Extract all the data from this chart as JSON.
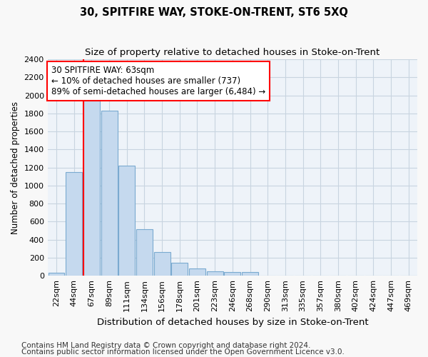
{
  "title": "30, SPITFIRE WAY, STOKE-ON-TRENT, ST6 5XQ",
  "subtitle": "Size of property relative to detached houses in Stoke-on-Trent",
  "xlabel": "Distribution of detached houses by size in Stoke-on-Trent",
  "ylabel": "Number of detached properties",
  "categories": [
    "22sqm",
    "44sqm",
    "67sqm",
    "89sqm",
    "111sqm",
    "134sqm",
    "156sqm",
    "178sqm",
    "201sqm",
    "223sqm",
    "246sqm",
    "268sqm",
    "290sqm",
    "313sqm",
    "335sqm",
    "357sqm",
    "380sqm",
    "402sqm",
    "424sqm",
    "447sqm",
    "469sqm"
  ],
  "values": [
    30,
    1150,
    1950,
    1830,
    1220,
    520,
    265,
    145,
    80,
    50,
    40,
    40,
    0,
    0,
    0,
    0,
    0,
    0,
    0,
    0,
    0
  ],
  "bar_color": "#c5d9ee",
  "bar_edge_color": "#7aaad0",
  "vline_color": "red",
  "vline_x_index": 2,
  "annotation_text": "30 SPITFIRE WAY: 63sqm\n← 10% of detached houses are smaller (737)\n89% of semi-detached houses are larger (6,484) →",
  "annotation_box_color": "white",
  "annotation_box_edge": "red",
  "ylim": [
    0,
    2400
  ],
  "yticks": [
    0,
    200,
    400,
    600,
    800,
    1000,
    1200,
    1400,
    1600,
    1800,
    2000,
    2200,
    2400
  ],
  "footer1": "Contains HM Land Registry data © Crown copyright and database right 2024.",
  "footer2": "Contains public sector information licensed under the Open Government Licence v3.0.",
  "fig_bg_color": "#f8f8f8",
  "plot_bg_color": "#eef3f9",
  "title_fontsize": 10.5,
  "subtitle_fontsize": 9.5,
  "xlabel_fontsize": 9.5,
  "ylabel_fontsize": 8.5,
  "tick_fontsize": 8,
  "annotation_fontsize": 8.5,
  "footer_fontsize": 7.5,
  "grid_color": "#c8d4e0"
}
